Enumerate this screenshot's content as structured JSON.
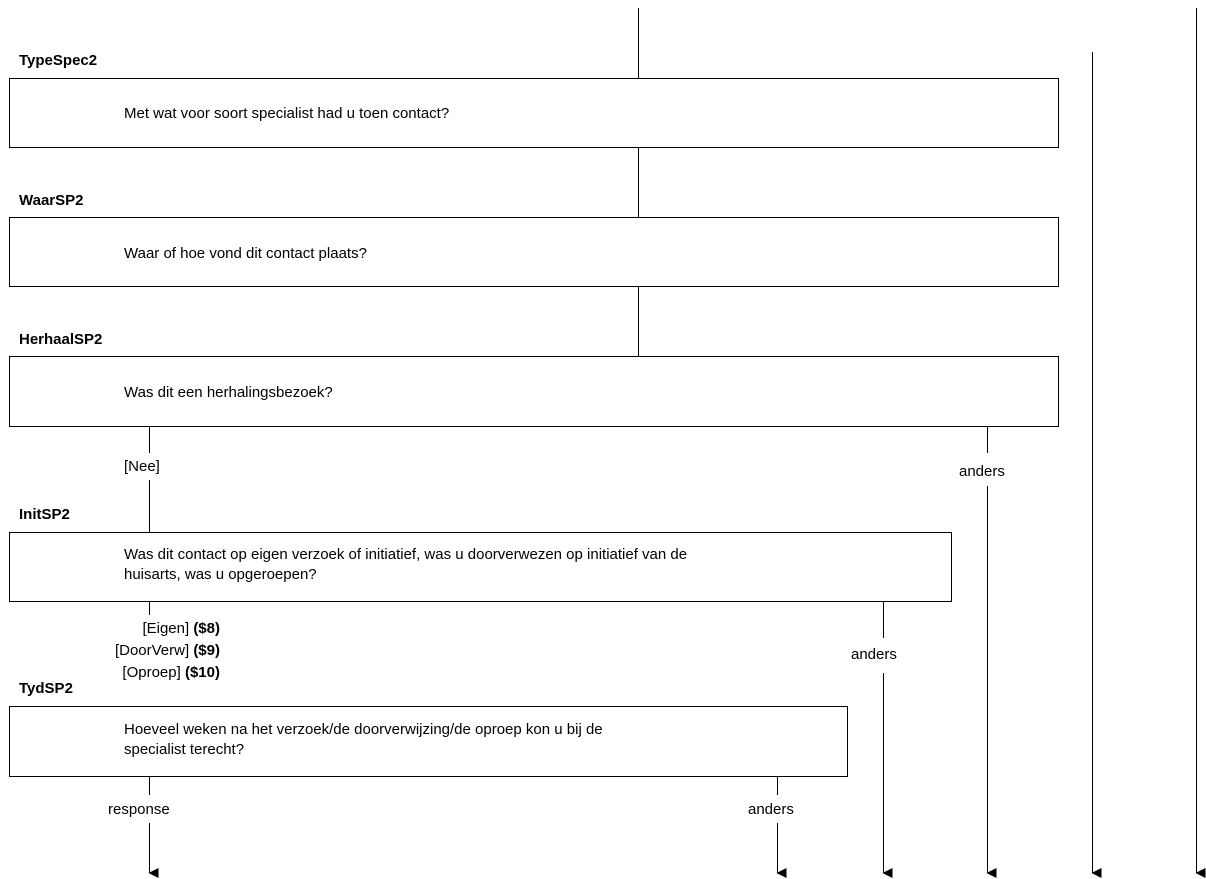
{
  "questions": [
    {
      "name": "TypeSpec2",
      "text": "Met wat voor soort specialist had u toen contact?"
    },
    {
      "name": "WaarSP2",
      "text": "Waar of hoe vond dit contact plaats?"
    },
    {
      "name": "HerhaalSP2",
      "text": "Was dit een herhalingsbezoek?"
    },
    {
      "name": "InitSP2",
      "text_line1": "Was dit contact op eigen verzoek of initiatief, was u doorverwezen op initiatief van de",
      "text_line2": "huisarts, was u opgeroepen?"
    },
    {
      "name": "TydSP2",
      "text_line1": "Hoeveel weken na het verzoek/de doorverwijzing/de oproep kon u bij de",
      "text_line2": "specialist terecht?"
    }
  ],
  "branches": {
    "herhaal_nee": "[Nee]",
    "herhaal_anders": "anders",
    "init_eigen": "[Eigen]",
    "init_eigen_code": "($8)",
    "init_doorverw": "[DoorVerw]",
    "init_doorverw_code": "($9)",
    "init_oproep": "[Oproep]",
    "init_oproep_code": "($10)",
    "init_anders": "anders",
    "tyd_response": "response",
    "tyd_anders": "anders"
  }
}
